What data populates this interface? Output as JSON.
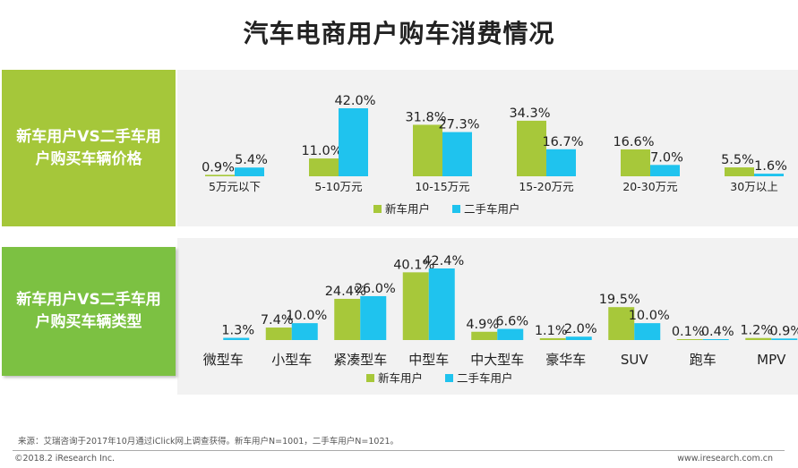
{
  "title": "汽车电商用户购车消费情况",
  "colors": {
    "new": "#a7c83a",
    "used": "#1fc3ee"
  },
  "chart_data": [
    {
      "type": "bar",
      "label": "新车用户VS二手车用户购买车辆价格",
      "categories": [
        "5万元以下",
        "5-10万元",
        "10-15万元",
        "15-20万元",
        "20-30万元",
        "30万以上"
      ],
      "series": [
        {
          "name": "新车用户",
          "values": [
            0.9,
            11.0,
            31.8,
            34.3,
            16.6,
            5.5
          ]
        },
        {
          "name": "二手车用户",
          "values": [
            5.4,
            42.0,
            27.3,
            16.7,
            7.0,
            1.6
          ]
        }
      ],
      "unit": "%",
      "legend": "bottom"
    },
    {
      "type": "bar",
      "label": "新车用户VS二手车用户购买车辆类型",
      "categories": [
        "微型车",
        "小型车",
        "紧凑型车",
        "中型车",
        "中大型车",
        "豪华车",
        "SUV",
        "跑车",
        "MPV"
      ],
      "series": [
        {
          "name": "新车用户",
          "values": [
            null,
            7.4,
            24.4,
            40.1,
            4.9,
            1.1,
            19.5,
            0.1,
            1.2
          ]
        },
        {
          "name": "二手车用户",
          "values": [
            1.3,
            10.0,
            26.0,
            42.4,
            6.6,
            2.0,
            10.0,
            0.4,
            0.9
          ]
        }
      ],
      "unit": "%",
      "legend": "bottom"
    }
  ],
  "source": "来源：艾瑞咨询于2017年10月通过iClick网上调查获得。新车用户N=1001，二手车用户N=1021。",
  "footer_left": "©2018.2 iResearch Inc.",
  "footer_right": "www.iresearch.com.cn"
}
